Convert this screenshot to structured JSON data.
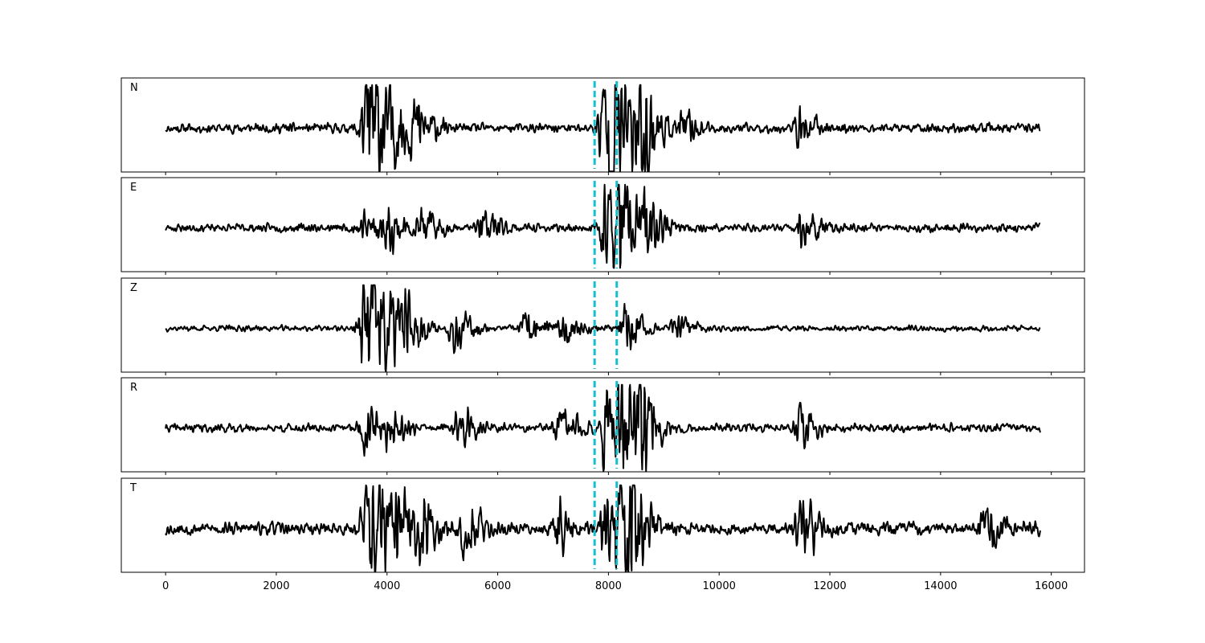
{
  "chart_data": {
    "type": "line",
    "title": "",
    "xlabel": "",
    "ylabel": "",
    "xlim": [
      -800,
      16600
    ],
    "xticks": [
      0,
      2000,
      4000,
      6000,
      8000,
      10000,
      12000,
      14000,
      16000
    ],
    "x_range": [
      0,
      15800
    ],
    "pick_lines": [
      7750,
      8150
    ],
    "grid": false,
    "legend": "none",
    "colors": {
      "trace": "#000000",
      "pick_line": "#17becf"
    },
    "series": [
      {
        "name": "N",
        "events": [
          [
            3550,
            0.55
          ],
          [
            3680,
            0.9
          ],
          [
            4100,
            0.5
          ],
          [
            4500,
            0.45
          ],
          [
            7900,
            0.85
          ],
          [
            8000,
            0.9
          ],
          [
            8400,
            0.6
          ],
          [
            8560,
            0.75
          ],
          [
            9300,
            0.25
          ],
          [
            11450,
            0.3
          ]
        ],
        "noise": 0.08,
        "seed": 11
      },
      {
        "name": "E",
        "events": [
          [
            3500,
            0.35
          ],
          [
            4000,
            0.3
          ],
          [
            4600,
            0.3
          ],
          [
            5700,
            0.3
          ],
          [
            7950,
            0.9
          ],
          [
            8200,
            0.55
          ],
          [
            8600,
            0.55
          ],
          [
            11500,
            0.3
          ]
        ],
        "noise": 0.07,
        "seed": 23
      },
      {
        "name": "Z",
        "events": [
          [
            3570,
            0.95
          ],
          [
            3750,
            0.55
          ],
          [
            4000,
            0.6
          ],
          [
            4300,
            0.45
          ],
          [
            5200,
            0.35
          ],
          [
            6500,
            0.25
          ],
          [
            7200,
            0.25
          ],
          [
            8300,
            0.4
          ],
          [
            9200,
            0.2
          ]
        ],
        "noise": 0.05,
        "seed": 37
      },
      {
        "name": "R",
        "events": [
          [
            3550,
            0.35
          ],
          [
            4000,
            0.3
          ],
          [
            5300,
            0.3
          ],
          [
            7100,
            0.35
          ],
          [
            7950,
            0.95
          ],
          [
            8200,
            0.7
          ],
          [
            8580,
            0.75
          ],
          [
            11450,
            0.3
          ]
        ],
        "noise": 0.07,
        "seed": 41
      },
      {
        "name": "T",
        "events": [
          [
            3600,
            0.75
          ],
          [
            3750,
            0.9
          ],
          [
            4200,
            0.55
          ],
          [
            4600,
            0.5
          ],
          [
            5400,
            0.4
          ],
          [
            7100,
            0.45
          ],
          [
            7950,
            0.8
          ],
          [
            8250,
            0.75
          ],
          [
            8450,
            0.6
          ],
          [
            11450,
            0.45
          ],
          [
            14800,
            0.3
          ]
        ],
        "noise": 0.11,
        "seed": 53
      }
    ]
  }
}
